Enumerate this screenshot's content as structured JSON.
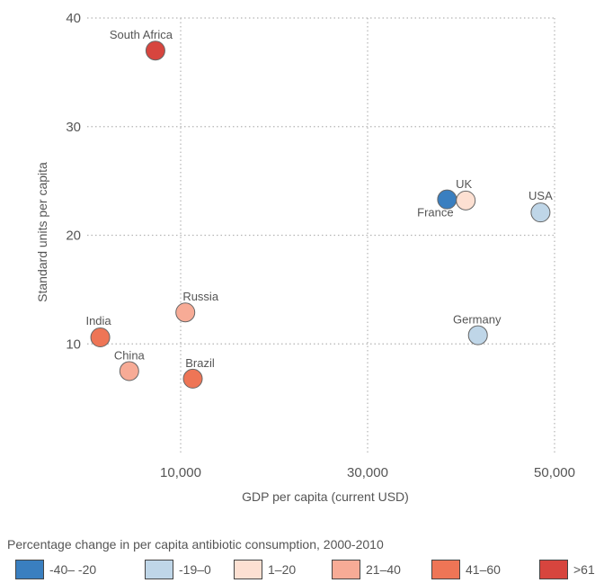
{
  "chart_data": {
    "type": "scatter",
    "title": "",
    "xlabel": "GDP per capita (current USD)",
    "ylabel": "Standard units per capita",
    "xlim": [
      0,
      50000
    ],
    "ylim": [
      0,
      40
    ],
    "x_ticks": [
      10000,
      30000,
      50000
    ],
    "x_tick_labels": [
      "10,000",
      "30,000",
      "50,000"
    ],
    "y_ticks": [
      10,
      20,
      30,
      40
    ],
    "y_tick_labels": [
      "10",
      "20",
      "30",
      "40"
    ],
    "grid": "dotted",
    "points": [
      {
        "label": "South Africa",
        "x": 7300,
        "y": 37.0,
        "color": "#d7453e"
      },
      {
        "label": "France",
        "x": 38500,
        "y": 23.3,
        "color": "#3a7fc0"
      },
      {
        "label": "UK",
        "x": 40500,
        "y": 23.2,
        "color": "#fde0d2"
      },
      {
        "label": "USA",
        "x": 48500,
        "y": 22.1,
        "color": "#bfd6e8"
      },
      {
        "label": "Russia",
        "x": 10500,
        "y": 12.9,
        "color": "#f7ab96"
      },
      {
        "label": "India",
        "x": 1400,
        "y": 10.6,
        "color": "#ee7556"
      },
      {
        "label": "Germany",
        "x": 41800,
        "y": 10.8,
        "color": "#bfd6e8"
      },
      {
        "label": "China",
        "x": 4500,
        "y": 7.5,
        "color": "#f7ab96"
      },
      {
        "label": "Brazil",
        "x": 11300,
        "y": 6.8,
        "color": "#ee7556"
      }
    ]
  },
  "legend": {
    "title": "Percentage change in per capita antibiotic consumption, 2000-2010",
    "items": [
      {
        "label": "-40– -20",
        "color": "#3a7fc0"
      },
      {
        "label": "-19–0",
        "color": "#bfd6e8"
      },
      {
        "label": "1–20",
        "color": "#fde0d2"
      },
      {
        "label": "21–40",
        "color": "#f7ab96"
      },
      {
        "label": "41–60",
        "color": "#ee7556"
      },
      {
        "label": ">61",
        "color": "#d7453e"
      }
    ]
  }
}
